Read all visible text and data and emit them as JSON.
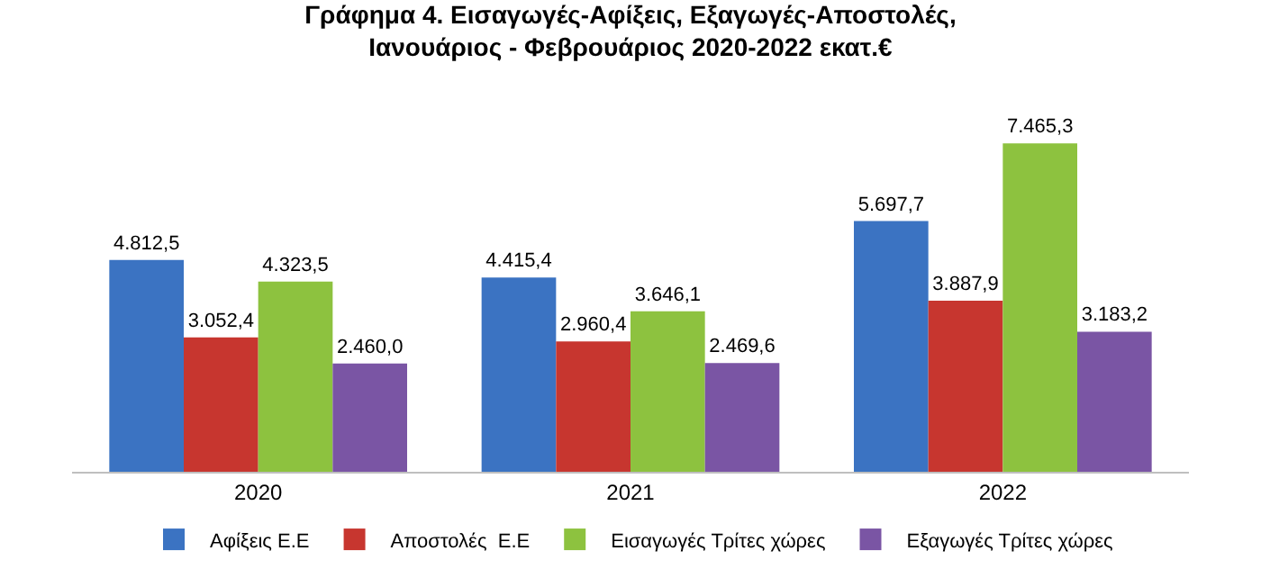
{
  "chart_data": {
    "type": "bar",
    "title": "Γράφημα 4. Εισαγωγές-Αφίξεις, Εξαγωγές-Αποστολές,\nΙανουάριος - Φεβρουάριος 2020-2022 εκατ.€",
    "categories": [
      "2020",
      "2021",
      "2022"
    ],
    "series": [
      {
        "name": "Αφίξεις Ε.Ε",
        "color": "#3b73c2",
        "values": [
          4812.5,
          4415.4,
          5697.7
        ],
        "value_labels": [
          "4.812,5",
          "4.415,4",
          "5.697,7"
        ]
      },
      {
        "name": "Αποστολές  Ε.Ε",
        "color": "#c7362f",
        "values": [
          3052.4,
          2960.4,
          3887.9
        ],
        "value_labels": [
          "3.052,4",
          "2.960,4",
          "3.887,9"
        ]
      },
      {
        "name": "Εισαγωγές Τρίτες χώρες",
        "color": "#8dc23f",
        "values": [
          4323.5,
          3646.1,
          7465.3
        ],
        "value_labels": [
          "4.323,5",
          "3.646,1",
          "7.465,3"
        ]
      },
      {
        "name": "Εξαγωγές Τρίτες χώρες",
        "color": "#7a55a4",
        "values": [
          2460.0,
          2469.6,
          3183.2
        ],
        "value_labels": [
          "2.460,0",
          "2.469,6",
          "3.183,2"
        ]
      }
    ],
    "legend": "bottom"
  }
}
